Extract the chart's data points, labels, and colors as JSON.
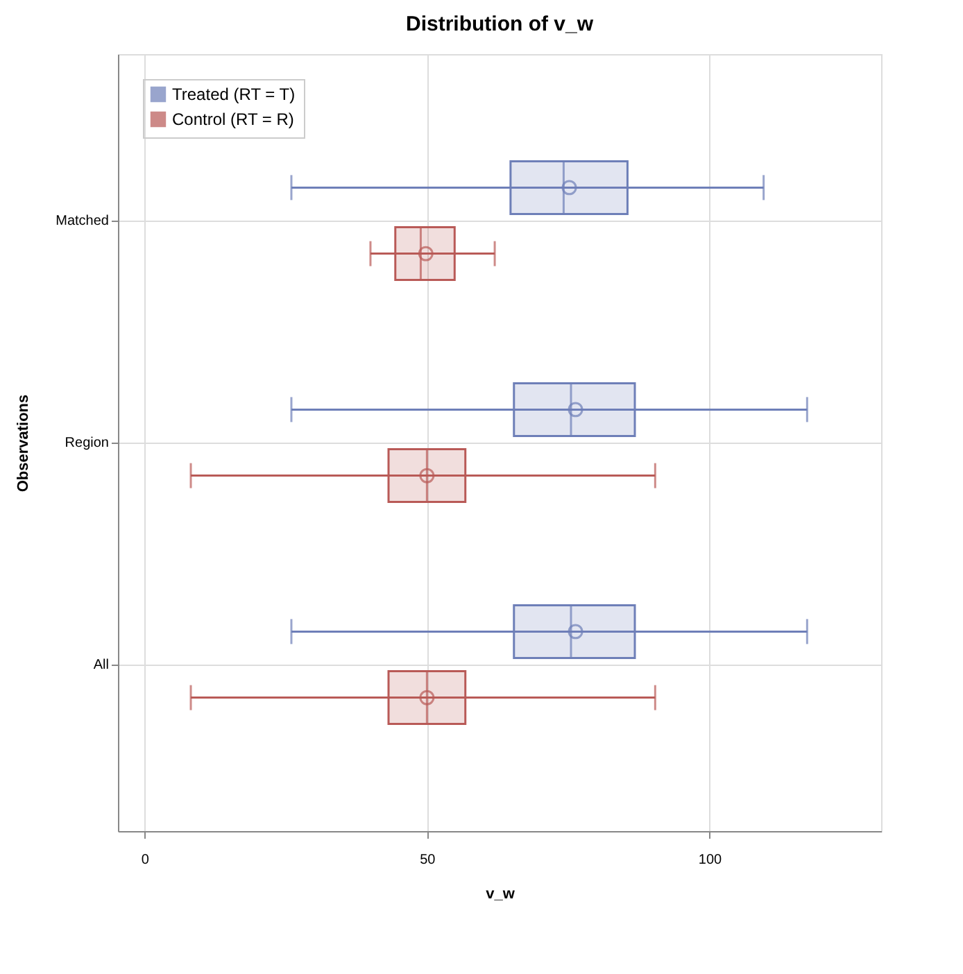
{
  "chart_data": {
    "type": "box",
    "title": "Distribution of v_w",
    "xlabel": "v_w",
    "ylabel": "Observations",
    "orientation": "horizontal",
    "categories": [
      "Matched",
      "Region",
      "All"
    ],
    "xlim": [
      -4.7,
      130.4
    ],
    "xticks": [
      0,
      50,
      100
    ],
    "grid": true,
    "legend": "top left",
    "marker": "circle",
    "series": [
      {
        "name": "Treated (RT = T)",
        "color": "#6e7fb8",
        "boxes": [
          {
            "low": 26,
            "q1": 64.8,
            "median": 74.2,
            "q3": 85.5,
            "high": 109.6,
            "mean": 75.2
          },
          {
            "low": 26,
            "q1": 65.4,
            "median": 75.5,
            "q3": 86.8,
            "high": 117.3,
            "mean": 76.3
          },
          {
            "low": 26,
            "q1": 65.4,
            "median": 75.5,
            "q3": 86.8,
            "high": 117.3,
            "mean": 76.3
          }
        ]
      },
      {
        "name": "Control (RT = R)",
        "color": "#b95a57",
        "boxes": [
          {
            "low": 40.0,
            "q1": 44.4,
            "median": 48.9,
            "q3": 54.9,
            "high": 62.0,
            "mean": 49.8
          },
          {
            "low": 8.2,
            "q1": 43.2,
            "median": 50.0,
            "q3": 56.8,
            "high": 90.4,
            "mean": 50.0
          },
          {
            "low": 8.2,
            "q1": 43.2,
            "median": 50.0,
            "q3": 56.8,
            "high": 90.4,
            "mean": 50.0
          }
        ]
      }
    ]
  }
}
